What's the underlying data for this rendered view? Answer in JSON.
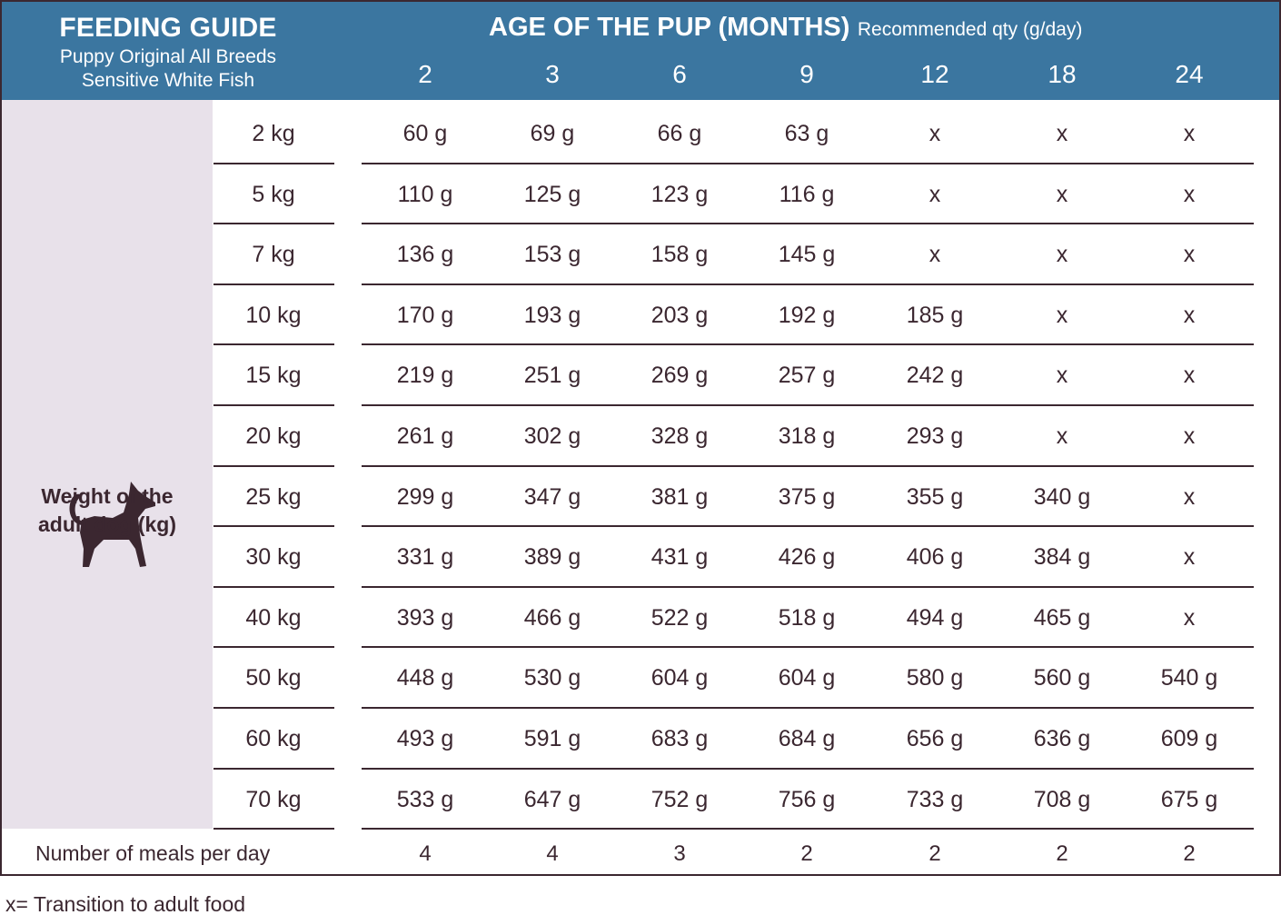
{
  "colors": {
    "header_bg": "#3b76a0",
    "side_band": "#e8e1ea",
    "text": "#3b2730",
    "dog_icon": "#3b2730"
  },
  "header": {
    "title": "FEEDING GUIDE",
    "subtitle_line1": "Puppy Original All Breeds",
    "subtitle_line2": "Sensitive White Fish",
    "age_title": "AGE OF THE PUP (MONTHS)",
    "age_subtitle": "Recommended qty (g/day)"
  },
  "side": {
    "icon": "dog-icon",
    "label_line1": "Weight of the",
    "label_line2": "adult dog (kg)"
  },
  "chart_data": {
    "type": "table",
    "title": "FEEDING GUIDE",
    "columns": [
      "2",
      "3",
      "6",
      "9",
      "12",
      "18",
      "24"
    ],
    "rows": [
      {
        "weight": "2 kg",
        "values": [
          "60 g",
          "69 g",
          "66 g",
          "63 g",
          "x",
          "x",
          "x"
        ]
      },
      {
        "weight": "5 kg",
        "values": [
          "110 g",
          "125 g",
          "123 g",
          "116 g",
          "x",
          "x",
          "x"
        ]
      },
      {
        "weight": "7 kg",
        "values": [
          "136 g",
          "153 g",
          "158 g",
          "145 g",
          "x",
          "x",
          "x"
        ]
      },
      {
        "weight": "10 kg",
        "values": [
          "170 g",
          "193 g",
          "203 g",
          "192 g",
          "185 g",
          "x",
          "x"
        ]
      },
      {
        "weight": "15 kg",
        "values": [
          "219 g",
          "251 g",
          "269 g",
          "257 g",
          "242 g",
          "x",
          "x"
        ]
      },
      {
        "weight": "20 kg",
        "values": [
          "261 g",
          "302 g",
          "328 g",
          "318 g",
          "293 g",
          "x",
          "x"
        ]
      },
      {
        "weight": "25 kg",
        "values": [
          "299 g",
          "347 g",
          "381  g",
          "375 g",
          "355 g",
          "340 g",
          "x"
        ]
      },
      {
        "weight": "30 kg",
        "values": [
          "331 g",
          "389 g",
          "431 g",
          "426 g",
          "406 g",
          "384 g",
          "x"
        ]
      },
      {
        "weight": "40 kg",
        "values": [
          "393 g",
          "466 g",
          "522 g",
          "518 g",
          "494 g",
          "465 g",
          "x"
        ]
      },
      {
        "weight": "50 kg",
        "values": [
          "448 g",
          "530 g",
          "604 g",
          "604 g",
          "580 g",
          "560 g",
          "540 g"
        ]
      },
      {
        "weight": "60 kg",
        "values": [
          "493 g",
          "591 g",
          "683 g",
          "684 g",
          "656 g",
          "636 g",
          "609 g"
        ]
      },
      {
        "weight": "70 kg",
        "values": [
          "533 g",
          "647 g",
          "752 g",
          "756 g",
          "733 g",
          "708 g",
          "675 g"
        ]
      }
    ],
    "meals": {
      "label": "Number of meals per day",
      "values": [
        "4",
        "4",
        "3",
        "2",
        "2",
        "2",
        "2"
      ]
    }
  },
  "footnote": "x= Transition to adult food"
}
